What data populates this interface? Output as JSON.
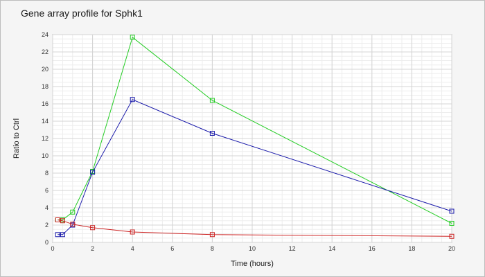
{
  "chart_data": {
    "type": "line",
    "title": "Gene array profile for Sphk1",
    "xlabel": "Time (hours)",
    "ylabel": "Ratio to Ctrl",
    "xlim": [
      0,
      20
    ],
    "ylim": [
      0,
      24
    ],
    "x_ticks": [
      0,
      2,
      4,
      6,
      8,
      10,
      12,
      14,
      16,
      18,
      20
    ],
    "y_ticks": [
      0,
      2,
      4,
      6,
      8,
      10,
      12,
      14,
      16,
      18,
      20,
      22,
      24
    ],
    "grid": true,
    "marker": "square",
    "series": [
      {
        "color": "#22cc22",
        "x": [
          0.25,
          0.5,
          1,
          2,
          4,
          8,
          20
        ],
        "y": [
          2.6,
          2.6,
          3.5,
          8.2,
          23.7,
          16.4,
          2.2
        ]
      },
      {
        "color": "#1a1aaa",
        "x": [
          0.25,
          0.5,
          1,
          2,
          4,
          8,
          20
        ],
        "y": [
          0.9,
          0.9,
          2.0,
          8.1,
          16.5,
          12.6,
          3.6
        ]
      },
      {
        "color": "#cc2222",
        "x": [
          0.25,
          0.5,
          1,
          2,
          4,
          8,
          20
        ],
        "y": [
          2.6,
          2.5,
          2.1,
          1.7,
          1.2,
          0.9,
          0.7
        ]
      }
    ]
  }
}
